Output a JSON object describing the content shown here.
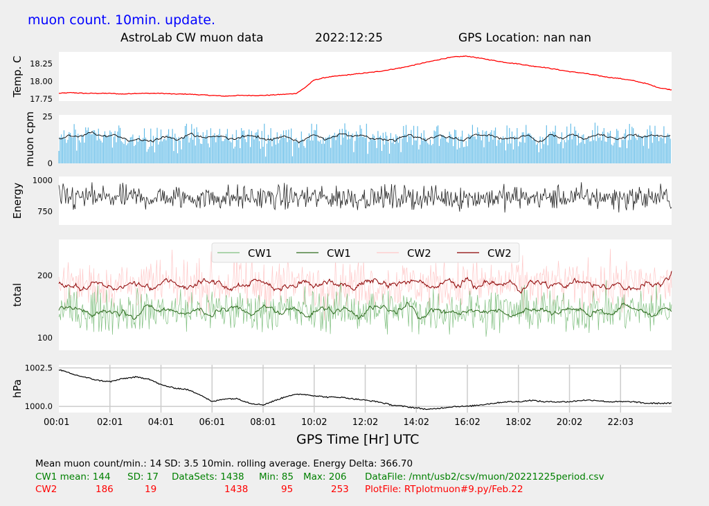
{
  "header": {
    "update_label": "muon count.  10min. update.",
    "title": "AstroLab CW muon data",
    "date": "2022:12:25",
    "gps_location": "GPS Location: nan   nan"
  },
  "colors": {
    "temp": "#ff0000",
    "muon_bar": "#5ab8e6",
    "muon_avg": "#000000",
    "energy": "#222222",
    "cw1_raw": "#7fbf7f",
    "cw1_avg": "#2e6b1e",
    "cw2_raw": "#ffc8c8",
    "cw2_avg": "#8b0000",
    "pressure": "#000000",
    "label_blue": "#0000ff",
    "text_green": "#008000",
    "text_red": "#ff0000"
  },
  "chart_data": [
    {
      "type": "line",
      "ylabel": "Temp. C",
      "ylim": [
        17.72,
        18.42
      ],
      "yticks": [
        "18.25",
        "18.00",
        "17.75"
      ],
      "x": [
        0,
        0.5,
        1,
        1.5,
        2,
        2.5,
        3,
        3.5,
        4,
        4.5,
        5,
        5.5,
        6,
        6.5,
        7,
        7.5,
        8,
        8.5,
        9,
        9.3,
        9.6,
        10,
        10.5,
        11,
        11.5,
        12,
        12.5,
        13,
        13.5,
        14,
        14.5,
        15,
        15.5,
        16,
        16.5,
        17,
        17.5,
        18,
        18.5,
        19,
        19.5,
        20,
        20.5,
        21,
        21.5,
        22,
        22.5,
        23,
        23.5,
        24
      ],
      "values": [
        17.83,
        17.84,
        17.83,
        17.83,
        17.83,
        17.82,
        17.83,
        17.83,
        17.83,
        17.82,
        17.82,
        17.81,
        17.8,
        17.79,
        17.8,
        17.8,
        17.8,
        17.81,
        17.82,
        17.83,
        17.9,
        18.02,
        18.06,
        18.08,
        18.1,
        18.12,
        18.14,
        18.17,
        18.2,
        18.24,
        18.28,
        18.32,
        18.35,
        18.36,
        18.33,
        18.3,
        18.27,
        18.25,
        18.22,
        18.2,
        18.17,
        18.14,
        18.12,
        18.09,
        18.06,
        18.04,
        18.01,
        17.97,
        17.91,
        17.88
      ]
    },
    {
      "type": "bar",
      "ylabel": "muon cpm",
      "ylim": [
        0,
        26
      ],
      "yticks": [
        "25",
        "0"
      ],
      "mean": 14,
      "sd": 3.5,
      "overlay": "10min. rolling average"
    },
    {
      "type": "line",
      "ylabel": "Energy",
      "ylim": [
        640,
        1030
      ],
      "yticks": [
        "1000",
        "750"
      ],
      "mean": 860
    },
    {
      "type": "line",
      "ylabel": "total",
      "ylim": [
        80,
        258
      ],
      "yticks": [
        "200",
        "100"
      ],
      "legend": [
        "CW1",
        "CW1",
        "CW2",
        "CW2"
      ],
      "legend_placement": "top-center",
      "series": [
        {
          "name": "CW1",
          "mean": 144,
          "sd": 17,
          "min": 85,
          "max": 206
        },
        {
          "name": "CW2",
          "mean": 186,
          "sd": 19,
          "min": 95,
          "max": 253
        }
      ]
    },
    {
      "type": "line",
      "ylabel": "hPa",
      "ylim": [
        999.6,
        1002.7
      ],
      "yticks": [
        "1002.5",
        "1000.0"
      ],
      "grid": "vertical",
      "x": [
        0,
        0.5,
        1,
        1.5,
        2,
        2.5,
        3,
        3.5,
        4,
        4.5,
        5,
        5.5,
        6,
        6.5,
        7,
        7.5,
        8,
        8.5,
        9,
        9.5,
        10,
        10.5,
        11,
        11.5,
        12,
        12.5,
        13,
        13.5,
        14,
        14.5,
        15,
        15.5,
        16,
        16.5,
        17,
        17.5,
        18,
        18.5,
        19,
        19.5,
        20,
        20.5,
        21,
        21.5,
        22,
        22.5,
        23,
        23.5,
        24
      ],
      "values": [
        1002.4,
        1002.1,
        1001.9,
        1001.7,
        1001.6,
        1001.8,
        1001.9,
        1001.8,
        1001.4,
        1001.2,
        1001.1,
        1000.8,
        1000.3,
        1000.5,
        1000.5,
        1000.2,
        1000.1,
        1000.4,
        1000.7,
        1000.8,
        1000.7,
        1000.6,
        1000.6,
        1000.5,
        1000.4,
        1000.3,
        1000.1,
        1000.0,
        999.9,
        999.8,
        999.9,
        1000.0,
        1000.0,
        1000.1,
        1000.2,
        1000.3,
        1000.3,
        1000.4,
        1000.3,
        1000.3,
        1000.3,
        1000.4,
        1000.4,
        1000.3,
        1000.3,
        1000.3,
        1000.2,
        1000.2,
        1000.2
      ]
    }
  ],
  "x_axis": {
    "label": "GPS Time  [Hr] UTC",
    "ticks": [
      "00:01",
      "02:01",
      "04:01",
      "06:01",
      "08:01",
      "10:02",
      "12:02",
      "14:02",
      "16:02",
      "18:02",
      "20:02",
      "22:03"
    ],
    "tick_hours": [
      0,
      2,
      4,
      6,
      8,
      10,
      12,
      14,
      16,
      18,
      20,
      22
    ],
    "range": [
      0,
      24
    ]
  },
  "stats": {
    "line1": "Mean muon count/min.: 14  SD: 3.5   10min. rolling average.    Energy Delta:  366.70",
    "cw1": [
      "CW1 mean: 144",
      "SD: 17",
      "DataSets: 1438",
      "Min: 85",
      "Max: 206",
      "DataFile: /mnt/usb2/csv/muon/20221225period.csv"
    ],
    "cw2": [
      "CW2",
      "186",
      "19",
      "1438",
      "95",
      "253",
      "PlotFile: RTplotmuon#9.py/Feb.22"
    ]
  }
}
